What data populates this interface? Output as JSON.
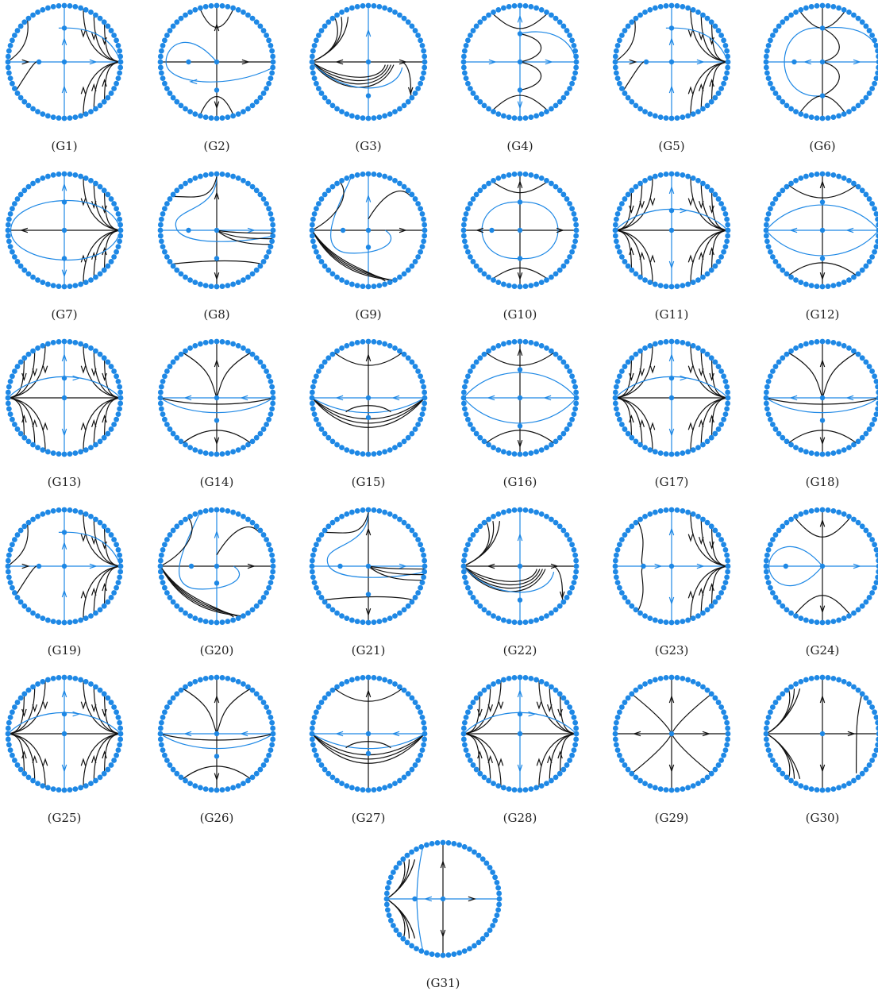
{
  "colors": {
    "separatrix": "#1e88e5",
    "orbit": "#111111",
    "dots": "#1e88e5"
  },
  "figures": [
    {
      "label": "(G1)",
      "name": "G1",
      "ptype": "c1"
    },
    {
      "label": "(G2)",
      "name": "G2",
      "ptype": "c2"
    },
    {
      "label": "(G3)",
      "name": "G3",
      "ptype": "c3"
    },
    {
      "label": "(G4)",
      "name": "G4",
      "ptype": "c4"
    },
    {
      "label": "(G5)",
      "name": "G5",
      "ptype": "c1"
    },
    {
      "label": "(G6)",
      "name": "G6",
      "ptype": "c6"
    },
    {
      "label": "(G7)",
      "name": "G7",
      "ptype": "c7"
    },
    {
      "label": "(G8)",
      "name": "G8",
      "ptype": "c8"
    },
    {
      "label": "(G9)",
      "name": "G9",
      "ptype": "c9"
    },
    {
      "label": "(G10)",
      "name": "G10",
      "ptype": "c10"
    },
    {
      "label": "(G11)",
      "name": "G11",
      "ptype": "c11"
    },
    {
      "label": "(G12)",
      "name": "G12",
      "ptype": "c12"
    },
    {
      "label": "(G13)",
      "name": "G13",
      "ptype": "c11"
    },
    {
      "label": "(G14)",
      "name": "G14",
      "ptype": "c14"
    },
    {
      "label": "(G15)",
      "name": "G15",
      "ptype": "c15"
    },
    {
      "label": "(G16)",
      "name": "G16",
      "ptype": "c12"
    },
    {
      "label": "(G17)",
      "name": "G17",
      "ptype": "c11"
    },
    {
      "label": "(G18)",
      "name": "G18",
      "ptype": "c14"
    },
    {
      "label": "(G19)",
      "name": "G19",
      "ptype": "c1"
    },
    {
      "label": "(G20)",
      "name": "G20",
      "ptype": "c9"
    },
    {
      "label": "(G21)",
      "name": "G21",
      "ptype": "c8"
    },
    {
      "label": "(G22)",
      "name": "G22",
      "ptype": "c3"
    },
    {
      "label": "(G23)",
      "name": "G23",
      "ptype": "c23"
    },
    {
      "label": "(G24)",
      "name": "G24",
      "ptype": "c24"
    },
    {
      "label": "(G25)",
      "name": "G25",
      "ptype": "c11"
    },
    {
      "label": "(G26)",
      "name": "G26",
      "ptype": "c14"
    },
    {
      "label": "(G27)",
      "name": "G27",
      "ptype": "c15"
    },
    {
      "label": "(G28)",
      "name": "G28",
      "ptype": "c11"
    },
    {
      "label": "(G29)",
      "name": "G29",
      "ptype": "c29"
    },
    {
      "label": "(G30)",
      "name": "G30",
      "ptype": "c30"
    },
    {
      "label": "(G31)",
      "name": "G31",
      "ptype": "c31"
    }
  ]
}
